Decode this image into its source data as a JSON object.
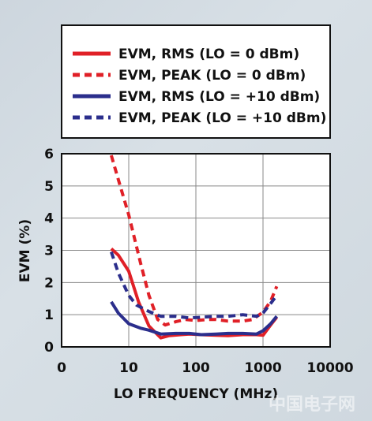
{
  "chart_data": {
    "type": "line",
    "x_scale": "log",
    "xlabel": "LO FREQUENCY (MHz)",
    "ylabel": "EVM (%)",
    "xlim": [
      1,
      10000
    ],
    "ylim": [
      0,
      6
    ],
    "x_ticks": [
      "0",
      "10",
      "100",
      "1000",
      "10000"
    ],
    "y_ticks": [
      "0",
      "1",
      "2",
      "3",
      "4",
      "5",
      "6"
    ],
    "grid": true,
    "legend_position": "top",
    "series": [
      {
        "name": "EVM, RMS (LO = 0 dBm)",
        "color": "#e02027",
        "dash": "solid",
        "points": [
          [
            5.5,
            3.05
          ],
          [
            7,
            2.85
          ],
          [
            10,
            2.35
          ],
          [
            14,
            1.4
          ],
          [
            20,
            0.65
          ],
          [
            30,
            0.28
          ],
          [
            40,
            0.35
          ],
          [
            60,
            0.38
          ],
          [
            80,
            0.4
          ],
          [
            120,
            0.38
          ],
          [
            200,
            0.36
          ],
          [
            300,
            0.35
          ],
          [
            500,
            0.38
          ],
          [
            800,
            0.38
          ],
          [
            1000,
            0.36
          ],
          [
            1300,
            0.68
          ],
          [
            1600,
            0.92
          ]
        ]
      },
      {
        "name": "EVM, PEAK (LO = 0 dBm)",
        "color": "#e02027",
        "dash": "dashed",
        "points": [
          [
            5.5,
            5.95
          ],
          [
            7,
            5.2
          ],
          [
            10,
            4.1
          ],
          [
            15,
            2.6
          ],
          [
            20,
            1.6
          ],
          [
            27,
            0.85
          ],
          [
            35,
            0.68
          ],
          [
            50,
            0.78
          ],
          [
            70,
            0.85
          ],
          [
            100,
            0.82
          ],
          [
            150,
            0.85
          ],
          [
            200,
            0.85
          ],
          [
            300,
            0.8
          ],
          [
            500,
            0.8
          ],
          [
            700,
            0.85
          ],
          [
            1000,
            1.08
          ],
          [
            1300,
            1.42
          ],
          [
            1600,
            1.88
          ]
        ]
      },
      {
        "name": "EVM, RMS (LO = +10 dBm)",
        "color": "#2b2e8c",
        "dash": "solid",
        "points": [
          [
            5.5,
            1.4
          ],
          [
            7,
            1.05
          ],
          [
            10,
            0.72
          ],
          [
            15,
            0.58
          ],
          [
            20,
            0.52
          ],
          [
            30,
            0.4
          ],
          [
            50,
            0.42
          ],
          [
            80,
            0.42
          ],
          [
            120,
            0.38
          ],
          [
            200,
            0.4
          ],
          [
            300,
            0.42
          ],
          [
            500,
            0.42
          ],
          [
            800,
            0.4
          ],
          [
            1000,
            0.5
          ],
          [
            1300,
            0.72
          ],
          [
            1600,
            0.95
          ]
        ]
      },
      {
        "name": "EVM, PEAK (LO = +10 dBm)",
        "color": "#2b2e8c",
        "dash": "dashed",
        "points": [
          [
            5.5,
            2.95
          ],
          [
            7,
            2.3
          ],
          [
            10,
            1.6
          ],
          [
            13,
            1.3
          ],
          [
            20,
            1.1
          ],
          [
            30,
            0.95
          ],
          [
            50,
            0.95
          ],
          [
            80,
            0.9
          ],
          [
            120,
            0.92
          ],
          [
            200,
            0.95
          ],
          [
            300,
            0.95
          ],
          [
            500,
            1.0
          ],
          [
            800,
            0.95
          ],
          [
            1000,
            1.05
          ],
          [
            1300,
            1.35
          ],
          [
            1600,
            1.6
          ]
        ]
      }
    ]
  },
  "watermark": "中国电子网"
}
